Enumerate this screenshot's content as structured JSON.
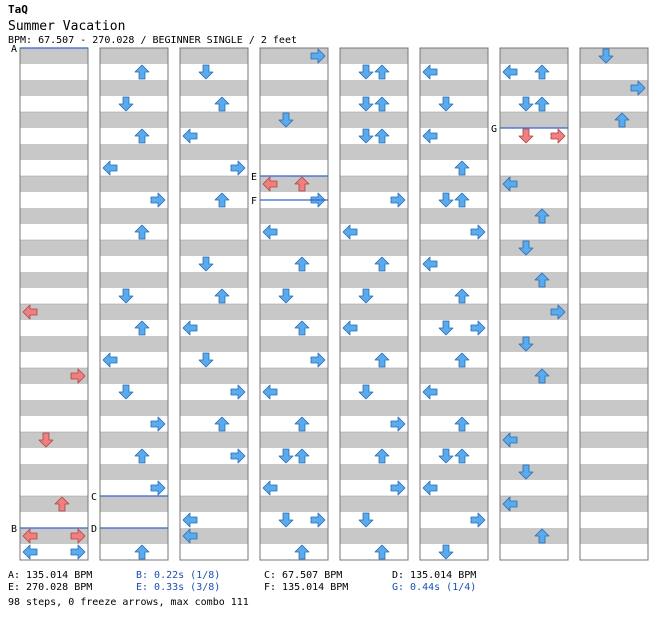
{
  "header": {
    "artist": "TaQ",
    "title": "Summer Vacation",
    "info": "BPM: 67.507 - 270.028 / BEGINNER SINGLE / 2 feet"
  },
  "colors": {
    "stripe": "#c8c8c8",
    "arrow_blue": "#5aaaf0",
    "arrow_red": "#f08080",
    "marker_line": "#3366cc",
    "text_blue": "#1a4fb5"
  },
  "chart": {
    "columns": 8,
    "rows_per_column": 32,
    "lanes": [
      "left",
      "down",
      "up",
      "right"
    ],
    "notes": [
      [
        [
          31,
          "left",
          "b"
        ],
        [
          31,
          "right",
          "b"
        ],
        [
          30,
          "left",
          "r"
        ],
        [
          30,
          "right",
          "r"
        ],
        [
          28,
          "up",
          "r"
        ],
        [
          24,
          "down",
          "r"
        ],
        [
          20,
          "right",
          "r"
        ],
        [
          16,
          "left",
          "r"
        ]
      ],
      [
        [
          1,
          "up",
          "b"
        ],
        [
          3,
          "down",
          "b"
        ],
        [
          5,
          "up",
          "b"
        ],
        [
          7,
          "left",
          "b"
        ],
        [
          9,
          "right",
          "b"
        ],
        [
          11,
          "up",
          "b"
        ],
        [
          15,
          "down",
          "b"
        ],
        [
          17,
          "up",
          "b"
        ],
        [
          19,
          "left",
          "b"
        ],
        [
          21,
          "down",
          "b"
        ],
        [
          23,
          "right",
          "b"
        ],
        [
          25,
          "up",
          "b"
        ],
        [
          27,
          "right",
          "b"
        ],
        [
          31,
          "up",
          "b"
        ]
      ],
      [
        [
          1,
          "down",
          "b"
        ],
        [
          3,
          "up",
          "b"
        ],
        [
          5,
          "left",
          "b"
        ],
        [
          7,
          "right",
          "b"
        ],
        [
          9,
          "up",
          "b"
        ],
        [
          13,
          "down",
          "b"
        ],
        [
          15,
          "up",
          "b"
        ],
        [
          17,
          "left",
          "b"
        ],
        [
          19,
          "down",
          "b"
        ],
        [
          21,
          "right",
          "b"
        ],
        [
          23,
          "up",
          "b"
        ],
        [
          25,
          "right",
          "b"
        ],
        [
          29,
          "left",
          "b"
        ],
        [
          30,
          "left",
          "b"
        ]
      ],
      [
        [
          0,
          "right",
          "b"
        ],
        [
          4,
          "down",
          "b"
        ],
        [
          8,
          "left",
          "r"
        ],
        [
          8,
          "up",
          "r"
        ],
        [
          9,
          "right",
          "b"
        ],
        [
          11,
          "left",
          "b"
        ],
        [
          13,
          "up",
          "b"
        ],
        [
          15,
          "down",
          "b"
        ],
        [
          17,
          "up",
          "b"
        ],
        [
          19,
          "right",
          "b"
        ],
        [
          21,
          "left",
          "b"
        ],
        [
          23,
          "up",
          "b"
        ],
        [
          25,
          "down",
          "b"
        ],
        [
          25,
          "up",
          "b"
        ],
        [
          27,
          "left",
          "b"
        ],
        [
          29,
          "down",
          "b"
        ],
        [
          29,
          "right",
          "b"
        ],
        [
          31,
          "up",
          "b"
        ]
      ],
      [
        [
          1,
          "down",
          "b"
        ],
        [
          1,
          "up",
          "b"
        ],
        [
          3,
          "down",
          "b"
        ],
        [
          3,
          "up",
          "b"
        ],
        [
          5,
          "down",
          "b"
        ],
        [
          5,
          "up",
          "b"
        ],
        [
          9,
          "right",
          "b"
        ],
        [
          11,
          "left",
          "b"
        ],
        [
          13,
          "up",
          "b"
        ],
        [
          15,
          "down",
          "b"
        ],
        [
          17,
          "left",
          "b"
        ],
        [
          19,
          "up",
          "b"
        ],
        [
          21,
          "down",
          "b"
        ],
        [
          23,
          "right",
          "b"
        ],
        [
          25,
          "up",
          "b"
        ],
        [
          27,
          "right",
          "b"
        ],
        [
          29,
          "down",
          "b"
        ],
        [
          31,
          "up",
          "b"
        ]
      ],
      [
        [
          1,
          "left",
          "b"
        ],
        [
          3,
          "down",
          "b"
        ],
        [
          5,
          "left",
          "b"
        ],
        [
          7,
          "up",
          "b"
        ],
        [
          9,
          "down",
          "b"
        ],
        [
          9,
          "up",
          "b"
        ],
        [
          11,
          "right",
          "b"
        ],
        [
          13,
          "left",
          "b"
        ],
        [
          15,
          "up",
          "b"
        ],
        [
          17,
          "down",
          "b"
        ],
        [
          17,
          "right",
          "b"
        ],
        [
          19,
          "up",
          "b"
        ],
        [
          21,
          "left",
          "b"
        ],
        [
          23,
          "up",
          "b"
        ],
        [
          25,
          "down",
          "b"
        ],
        [
          25,
          "up",
          "b"
        ],
        [
          27,
          "left",
          "b"
        ],
        [
          29,
          "right",
          "b"
        ],
        [
          31,
          "down",
          "b"
        ]
      ],
      [
        [
          1,
          "left",
          "b"
        ],
        [
          1,
          "up",
          "b"
        ],
        [
          3,
          "down",
          "b"
        ],
        [
          3,
          "up",
          "b"
        ],
        [
          5,
          "down",
          "r"
        ],
        [
          5,
          "right",
          "r"
        ],
        [
          8,
          "left",
          "b"
        ],
        [
          10,
          "up",
          "b"
        ],
        [
          12,
          "down",
          "b"
        ],
        [
          14,
          "up",
          "b"
        ],
        [
          16,
          "right",
          "b"
        ],
        [
          18,
          "down",
          "b"
        ],
        [
          20,
          "up",
          "b"
        ],
        [
          24,
          "left",
          "b"
        ],
        [
          26,
          "down",
          "b"
        ],
        [
          28,
          "left",
          "b"
        ],
        [
          30,
          "up",
          "b"
        ]
      ],
      [
        [
          0,
          "down",
          "b"
        ],
        [
          2,
          "right",
          "b"
        ],
        [
          4,
          "up",
          "b"
        ]
      ]
    ],
    "markers": [
      {
        "col": 0,
        "row": 0,
        "label": "A"
      },
      {
        "col": 0,
        "row": 30,
        "label": "B"
      },
      {
        "col": 1,
        "row": 28,
        "label": "C"
      },
      {
        "col": 1,
        "row": 30,
        "label": "D"
      },
      {
        "col": 3,
        "row": 8,
        "label": "E"
      },
      {
        "col": 3,
        "row": 9.5,
        "label": "F"
      },
      {
        "col": 6,
        "row": 5,
        "label": "G"
      }
    ]
  },
  "legend": {
    "a": "A: 135.014 BPM",
    "b": "B: 0.22s (1/8)",
    "c": "C: 67.507 BPM",
    "d": "D: 135.014 BPM",
    "e": "E: 270.028 BPM",
    "e2": "E: 0.33s (3/8)",
    "f": "F: 135.014 BPM",
    "g": "G: 0.44s (1/4)"
  },
  "footer": "98 steps, 0 freeze arrows, max combo 111"
}
